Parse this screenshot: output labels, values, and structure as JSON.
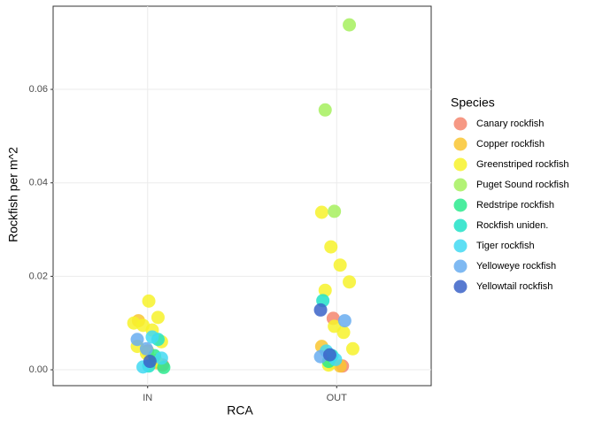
{
  "chart_data": {
    "type": "scatter",
    "x_label": "RCA",
    "y_label": "Rockfish per m^2",
    "legend_title": "Species",
    "legend_position": "right",
    "grid": true,
    "categories": [
      "IN",
      "OUT"
    ],
    "ylim": [
      -0.0034,
      0.0778
    ],
    "yticks": [
      {
        "value": 0,
        "label": "0.00"
      },
      {
        "value": 0.02,
        "label": "0.02"
      },
      {
        "value": 0.04,
        "label": "0.04"
      },
      {
        "value": 0.06,
        "label": "0.06"
      }
    ],
    "series": [
      {
        "name": "Canary rockfish",
        "color": "#f4866e",
        "x": [
          "OUT",
          "OUT",
          "IN"
        ],
        "values": [
          0.011,
          0.0008,
          0.001
        ]
      },
      {
        "name": "Copper rockfish",
        "color": "#f9c531",
        "x": [
          "IN",
          "IN",
          "IN",
          "OUT",
          "OUT",
          "OUT"
        ],
        "values": [
          0.0105,
          0.004,
          0.0015,
          0.005,
          0.0015,
          0.0008
        ]
      },
      {
        "name": "Greenstriped rockfish",
        "color": "#f7f22a",
        "x": [
          "OUT",
          "OUT",
          "OUT",
          "OUT",
          "OUT",
          "OUT",
          "OUT",
          "OUT",
          "OUT",
          "IN",
          "IN",
          "IN",
          "IN",
          "IN",
          "IN",
          "IN",
          "IN",
          "IN"
        ],
        "values": [
          0.0337,
          0.0263,
          0.0224,
          0.0188,
          0.017,
          0.0093,
          0.008,
          0.0045,
          0.001,
          0.0147,
          0.0112,
          0.01,
          0.0095,
          0.0085,
          0.006,
          0.005,
          0.0035,
          0.002
        ]
      },
      {
        "name": "Puget Sound rockfish",
        "color": "#a6f05e",
        "x": [
          "OUT",
          "OUT",
          "OUT"
        ],
        "values": [
          0.0738,
          0.0556,
          0.0339
        ]
      },
      {
        "name": "Redstripe rockfish",
        "color": "#2bea8e",
        "x": [
          "IN",
          "IN",
          "OUT"
        ],
        "values": [
          0.003,
          0.0005,
          0.0018
        ]
      },
      {
        "name": "Rockfish uniden.",
        "color": "#21e2c8",
        "x": [
          "IN",
          "IN",
          "OUT",
          "OUT"
        ],
        "values": [
          0.0008,
          0.0065,
          0.0148,
          0.003
        ]
      },
      {
        "name": "Tiger rockfish",
        "color": "#42d9f2",
        "x": [
          "IN",
          "IN",
          "IN",
          "OUT",
          "OUT"
        ],
        "values": [
          0.0006,
          0.007,
          0.0025,
          0.004,
          0.0022
        ]
      },
      {
        "name": "Yelloweye rockfish",
        "color": "#69adf0",
        "x": [
          "IN",
          "IN",
          "OUT",
          "OUT"
        ],
        "values": [
          0.0065,
          0.0045,
          0.0105,
          0.0028
        ]
      },
      {
        "name": "Yellowtail rockfish",
        "color": "#3b63c8",
        "x": [
          "OUT",
          "OUT",
          "IN"
        ],
        "values": [
          0.0128,
          0.0032,
          0.0018
        ]
      }
    ]
  }
}
